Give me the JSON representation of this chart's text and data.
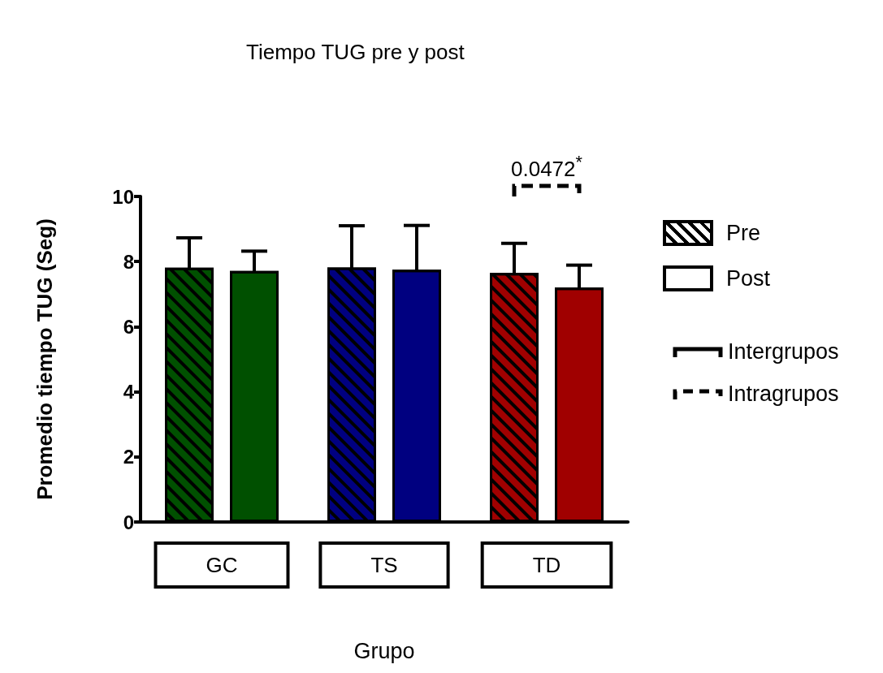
{
  "chart_data": {
    "type": "bar",
    "title": "Tiempo TUG pre y post",
    "xlabel": "Grupo",
    "ylabel": "Promedio tiempo TUG (Seg)",
    "categories": [
      "GC",
      "TS",
      "TD"
    ],
    "series": [
      {
        "name": "Pre",
        "colors": [
          "#005000",
          "#000080",
          "#a00000"
        ],
        "values": [
          7.81,
          7.82,
          7.65
        ],
        "errors": [
          0.92,
          1.28,
          0.91
        ]
      },
      {
        "name": "Post",
        "colors": [
          "#005000",
          "#000080",
          "#a00000"
        ],
        "values": [
          7.71,
          7.75,
          7.2
        ],
        "errors": [
          0.61,
          1.36,
          0.69
        ]
      }
    ],
    "ylim": [
      0,
      10
    ],
    "yticks": [
      0,
      2,
      4,
      6,
      8,
      10
    ],
    "grid": false,
    "legend": "right",
    "annotations": [
      "0.0472$^{*}$",
      "Intergrupos",
      "Intragrupos"
    ]
  }
}
